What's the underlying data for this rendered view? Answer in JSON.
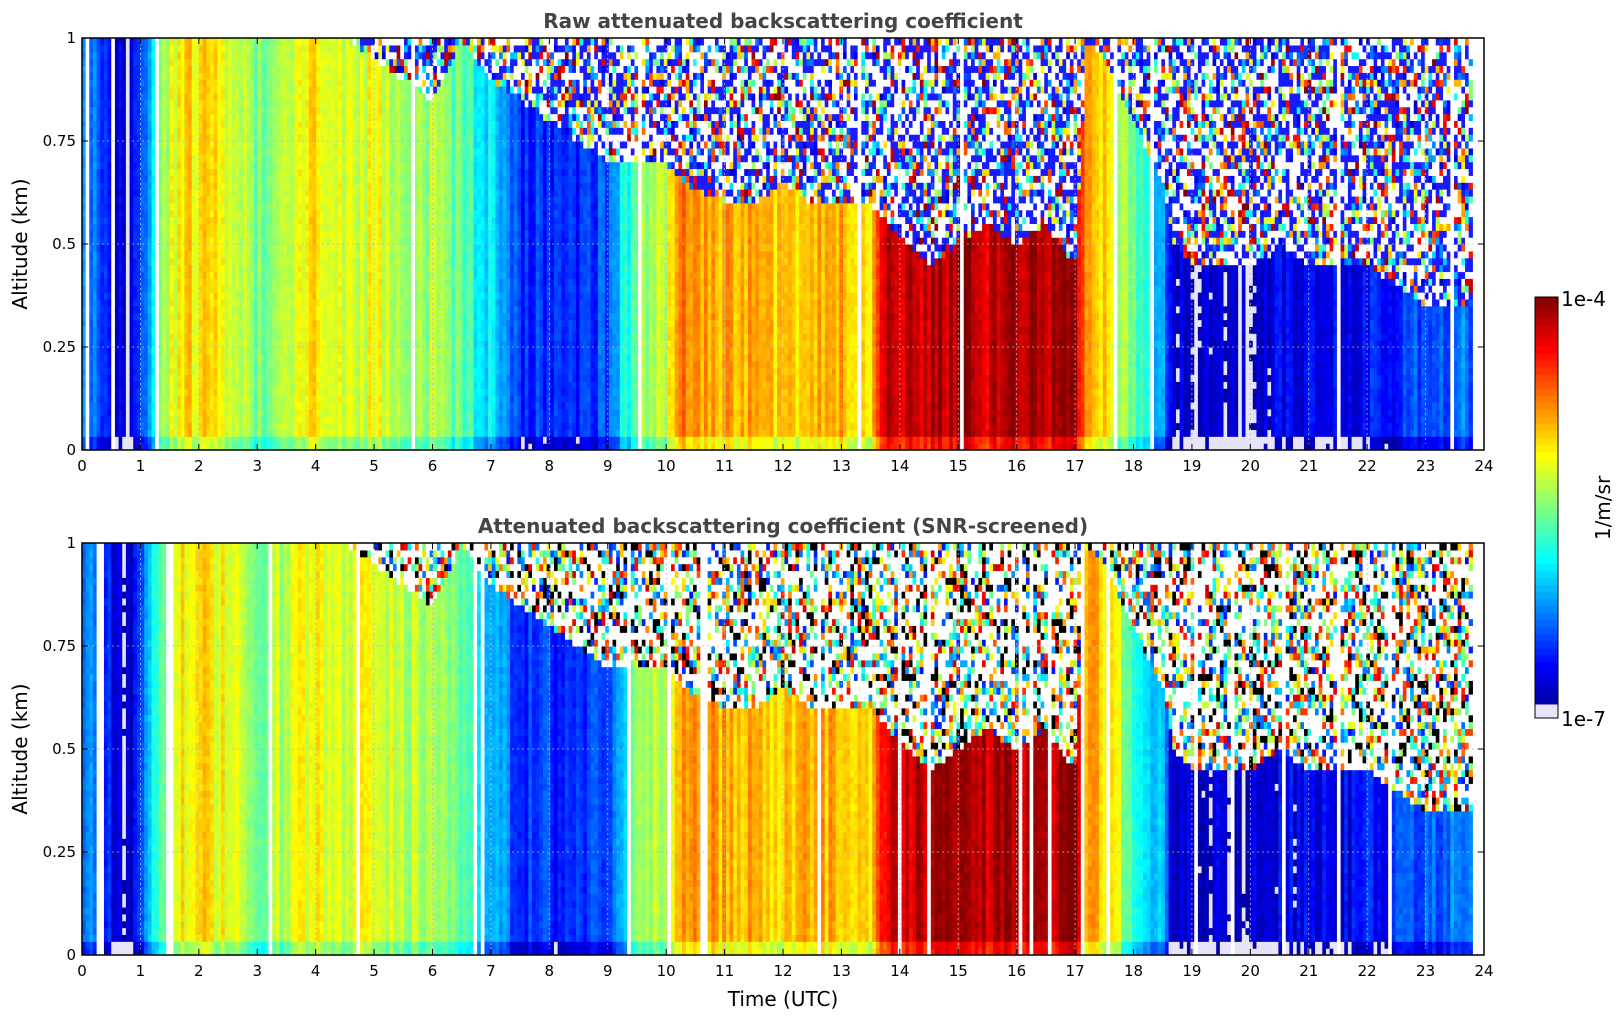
{
  "chart_data": [
    {
      "type": "heatmap",
      "title": "Raw attenuated backscattering coefficient",
      "xlabel": "",
      "ylabel": "Altitude (km)",
      "xlim": [
        0,
        24
      ],
      "ylim": [
        0,
        1
      ],
      "xticks": [
        "0",
        "1",
        "2",
        "3",
        "4",
        "5",
        "6",
        "7",
        "8",
        "9",
        "10",
        "11",
        "12",
        "13",
        "14",
        "15",
        "16",
        "17",
        "18",
        "19",
        "20",
        "21",
        "22",
        "23",
        "24"
      ],
      "yticks": [
        "0",
        "0.25",
        "0.5",
        "0.75",
        "1"
      ],
      "grid": true,
      "data_end_hour": 23.8,
      "column_profile": {
        "hours": [
          0.0,
          0.3,
          0.5,
          0.75,
          1.0,
          1.5,
          2.0,
          2.5,
          3.0,
          3.5,
          4.0,
          4.5,
          5.0,
          5.5,
          6.0,
          6.5,
          7.0,
          7.5,
          8.0,
          8.5,
          9.0,
          9.5,
          10.0,
          10.3,
          11.0,
          11.5,
          12.0,
          12.5,
          13.0,
          13.5,
          13.8,
          14.5,
          15.0,
          15.5,
          16.0,
          16.5,
          17.0,
          17.2,
          17.5,
          18.0,
          18.5,
          18.7,
          19.0,
          19.5,
          20.0,
          20.5,
          21.0,
          21.5,
          22.0,
          22.5,
          23.0,
          23.5,
          23.8
        ],
        "log10_beta_surface": [
          -6.2,
          -6.3,
          -6.6,
          -6.9,
          -6.4,
          -5.2,
          -5.0,
          -5.2,
          -5.5,
          -5.3,
          -5.1,
          -5.2,
          -5.2,
          -5.3,
          -5.4,
          -5.6,
          -6.0,
          -6.5,
          -6.5,
          -6.5,
          -6.4,
          -5.5,
          -5.3,
          -4.7,
          -4.9,
          -4.9,
          -5.0,
          -4.9,
          -4.9,
          -5.0,
          -4.2,
          -4.2,
          -4.1,
          -4.2,
          -4.1,
          -4.2,
          -4.1,
          -4.9,
          -5.0,
          -5.6,
          -6.2,
          -6.8,
          -6.8,
          -6.8,
          -6.8,
          -6.7,
          -6.7,
          -6.7,
          -6.6,
          -6.5,
          -6.4,
          -6.3,
          -6.3
        ],
        "noise_onset_km": [
          1.0,
          1.0,
          1.0,
          1.0,
          1.0,
          1.0,
          1.0,
          1.0,
          1.0,
          1.0,
          1.0,
          1.0,
          0.95,
          0.9,
          0.85,
          1.0,
          0.9,
          0.85,
          0.8,
          0.75,
          0.7,
          0.7,
          0.7,
          0.65,
          0.6,
          0.6,
          0.65,
          0.6,
          0.6,
          0.6,
          0.55,
          0.45,
          0.5,
          0.55,
          0.5,
          0.55,
          0.45,
          1.0,
          0.95,
          0.8,
          0.65,
          0.5,
          0.45,
          0.45,
          0.45,
          0.5,
          0.45,
          0.45,
          0.45,
          0.4,
          0.35,
          0.35,
          0.35
        ]
      }
    },
    {
      "type": "heatmap",
      "title": "Attenuated backscattering coefficient (SNR-screened)",
      "xlabel": "Time (UTC)",
      "ylabel": "Altitude (km)",
      "xlim": [
        0,
        24
      ],
      "ylim": [
        0,
        1
      ],
      "xticks": [
        "0",
        "1",
        "2",
        "3",
        "4",
        "5",
        "6",
        "7",
        "8",
        "9",
        "10",
        "11",
        "12",
        "13",
        "14",
        "15",
        "16",
        "17",
        "18",
        "19",
        "20",
        "21",
        "22",
        "23",
        "24"
      ],
      "yticks": [
        "0",
        "0.25",
        "0.5",
        "0.75",
        "1"
      ],
      "grid": true,
      "screened": true
    }
  ],
  "colorbar": {
    "label": "1/m/sr",
    "max_label": "1e-4",
    "min_label": "1e-7",
    "range_log10": [
      -7,
      -4
    ],
    "colormap": "jet",
    "low_end_color": "#e8e4f8"
  }
}
